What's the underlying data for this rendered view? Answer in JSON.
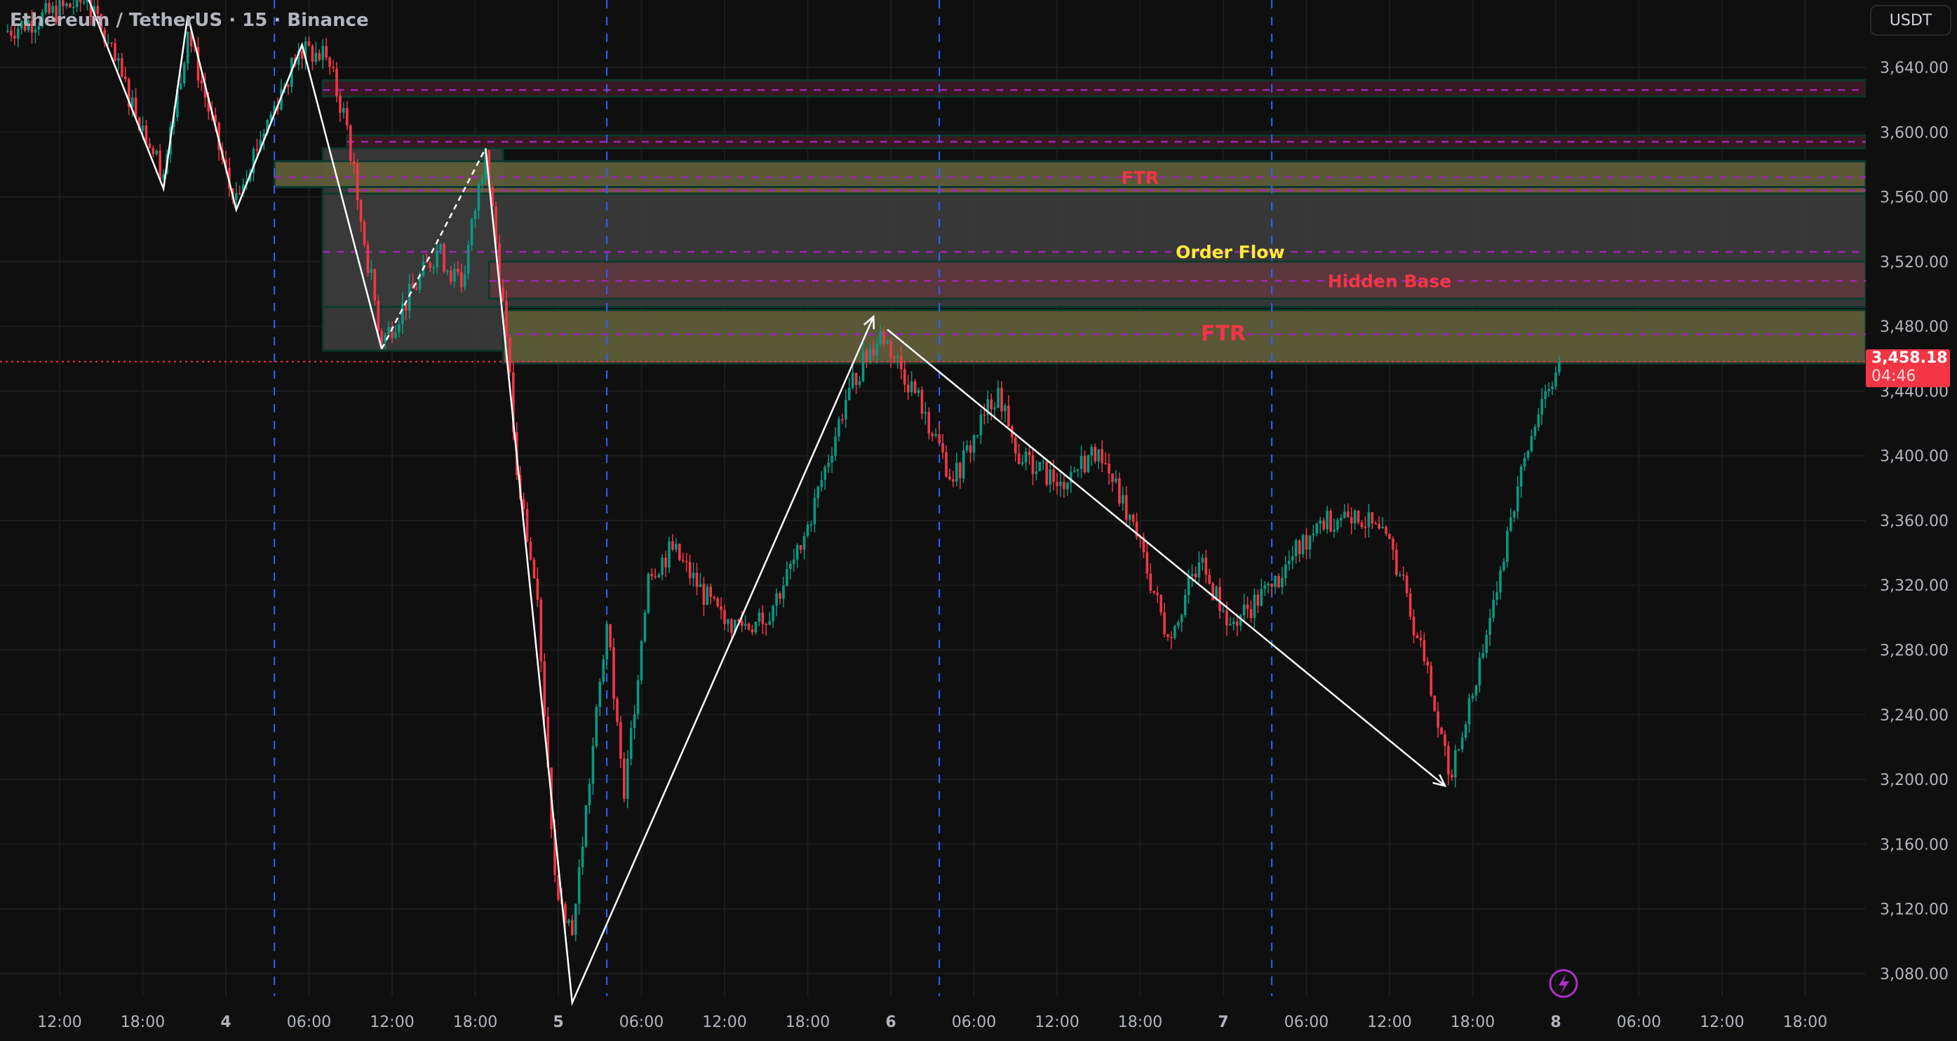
{
  "header": {
    "title": "Ethereum / TetherUS · 15 · Binance",
    "currency_button": "USDT"
  },
  "price_label": {
    "price": "3,458.18",
    "countdown": "04:46",
    "color": "#f23645"
  },
  "icons": {
    "alert": "lightning-icon"
  },
  "colors": {
    "background": "#0f0f0f",
    "grid": "#1c1c1c",
    "up": "#089981",
    "down": "#f23645",
    "session_line": "#2962ff",
    "midline": "#9c27b0"
  },
  "chart_data": {
    "type": "candlestick",
    "interval": "15",
    "ylim": [
      3060,
      3690
    ],
    "price_ticks": [
      "3,640.00",
      "3,600.00",
      "3,560.00",
      "3,520.00",
      "3,480.00",
      "3,440.00",
      "3,400.00",
      "3,360.00",
      "3,320.00",
      "3,280.00",
      "3,240.00",
      "3,200.00",
      "3,160.00",
      "3,120.00",
      "3,080.00"
    ],
    "time_ticks": [
      "12:00",
      "18:00",
      "4",
      "06:00",
      "12:00",
      "18:00",
      "5",
      "06:00",
      "12:00",
      "18:00",
      "6",
      "06:00",
      "12:00",
      "18:00",
      "7",
      "06:00",
      "12:00",
      "18:00",
      "8",
      "06:00",
      "12:00",
      "18:00"
    ],
    "price_path": [
      {
        "t": "3 08:00",
        "p": 3662
      },
      {
        "t": "3 14:00",
        "p": 3682
      },
      {
        "t": "3 19:30",
        "p": 3574
      },
      {
        "t": "3 21:15",
        "p": 3662
      },
      {
        "t": "4 00:30",
        "p": 3558
      },
      {
        "t": "4 05:15",
        "p": 3650
      },
      {
        "t": "4 07:15",
        "p": 3646
      },
      {
        "t": "4 08:45",
        "p": 3604
      },
      {
        "t": "4 09:30",
        "p": 3558
      },
      {
        "t": "4 11:15",
        "p": 3470
      },
      {
        "t": "4 15:15",
        "p": 3527
      },
      {
        "t": "4 17:00",
        "p": 3504
      },
      {
        "t": "4 18:45",
        "p": 3589
      },
      {
        "t": "4 20:15",
        "p": 3473
      },
      {
        "t": "4 21:00",
        "p": 3388
      },
      {
        "t": "4 22:30",
        "p": 3311
      },
      {
        "t": "4 23:45",
        "p": 3141
      },
      {
        "t": "5 01:00",
        "p": 3104
      },
      {
        "t": "5 03:30",
        "p": 3296
      },
      {
        "t": "5 04:45",
        "p": 3188
      },
      {
        "t": "5 06:30",
        "p": 3327
      },
      {
        "t": "5 08:15",
        "p": 3342
      },
      {
        "t": "5 12:00",
        "p": 3296
      },
      {
        "t": "5 14:45",
        "p": 3296
      },
      {
        "t": "5 17:30",
        "p": 3342
      },
      {
        "t": "5 21:00",
        "p": 3442
      },
      {
        "t": "5 23:15",
        "p": 3477
      },
      {
        "t": "6 02:30",
        "p": 3427
      },
      {
        "t": "6 04:30",
        "p": 3384
      },
      {
        "t": "6 07:45",
        "p": 3442
      },
      {
        "t": "6 09:30",
        "p": 3396
      },
      {
        "t": "6 12:15",
        "p": 3384
      },
      {
        "t": "6 15:00",
        "p": 3404
      },
      {
        "t": "6 17:45",
        "p": 3350
      },
      {
        "t": "6 20:00",
        "p": 3288
      },
      {
        "t": "6 22:15",
        "p": 3334
      },
      {
        "t": "7 00:30",
        "p": 3296
      },
      {
        "t": "7 03:30",
        "p": 3319
      },
      {
        "t": "7 06:45",
        "p": 3358
      },
      {
        "t": "7 09:30",
        "p": 3366
      },
      {
        "t": "7 12:15",
        "p": 3342
      },
      {
        "t": "7 14:30",
        "p": 3273
      },
      {
        "t": "7 16:15",
        "p": 3203
      },
      {
        "t": "7 17:30",
        "p": 3234
      },
      {
        "t": "7 19:30",
        "p": 3311
      },
      {
        "t": "7 21:15",
        "p": 3381
      },
      {
        "t": "7 23:00",
        "p": 3435
      },
      {
        "t": "8 00:15",
        "p": 3458.18
      }
    ],
    "session_lines": [
      "4 03:30",
      "5 03:30",
      "6 03:30",
      "7 03:30"
    ],
    "zones": [
      {
        "kind": "supply",
        "from": "4 07:00",
        "top": 3632,
        "bottom": 3622,
        "mid": 3626,
        "fill": "#3b1a22"
      },
      {
        "kind": "supply",
        "from": "4 08:45",
        "top": 3598,
        "bottom": 3590,
        "mid": 3594,
        "fill": "#3b1a22"
      },
      {
        "kind": "box",
        "from": "4 07:00",
        "to": "4 20:00",
        "top": 3590,
        "bottom": 3465,
        "fill": "#3a3a3a"
      },
      {
        "kind": "box",
        "from": "4 07:00",
        "top": 3562,
        "bottom": 3492,
        "fill": "#3a3a3a"
      },
      {
        "kind": "ftr",
        "from": "4 03:30",
        "top": 3582,
        "bottom": 3566,
        "mid": 3572,
        "fill": "#5f5c3a"
      },
      {
        "kind": "thin",
        "from": "4 08:45",
        "top": 3566,
        "bottom": 3562,
        "mid": 3564,
        "fill": "#7a5a3a"
      },
      {
        "kind": "hidden",
        "from": "4 19:00",
        "top": 3520,
        "bottom": 3497,
        "mid": 3508,
        "fill": "#5c383c"
      },
      {
        "kind": "ftr",
        "from": "4 20:00",
        "top": 3490,
        "bottom": 3457,
        "mid": 3475,
        "fill": "#5f5c3a"
      }
    ],
    "order_flow_level": 3526,
    "labels": [
      {
        "text": "FTR",
        "t": "6 18:00",
        "p": 3572,
        "color": "#f23645",
        "size": "small"
      },
      {
        "text": "Order Flow",
        "t": "7 00:30",
        "p": 3526,
        "color": "#ffeb3b",
        "size": "small"
      },
      {
        "text": "Hidden Base",
        "t": "7 12:00",
        "p": 3508,
        "color": "#f23645",
        "size": "small"
      },
      {
        "text": "FTR",
        "t": "7 00:00",
        "p": 3475,
        "color": "#f23645",
        "size": "large"
      }
    ],
    "drawings": [
      {
        "points": [
          {
            "t": "3 14:00",
            "p": 3684
          },
          {
            "t": "3 19:30",
            "p": 3565
          },
          {
            "t": "3 21:15",
            "p": 3672
          },
          {
            "t": "4 00:45",
            "p": 3552
          },
          {
            "t": "4 05:30",
            "p": 3654
          },
          {
            "t": "4 11:15",
            "p": 3466
          }
        ],
        "dashed": false
      },
      {
        "points": [
          {
            "t": "4 11:15",
            "p": 3466
          },
          {
            "t": "4 18:45",
            "p": 3590
          }
        ],
        "dashed": true
      },
      {
        "points": [
          {
            "t": "4 18:45",
            "p": 3590
          },
          {
            "t": "5 01:00",
            "p": 3062
          },
          {
            "t": "5 22:45",
            "p": 3486
          }
        ],
        "dashed": false,
        "arrow": true
      },
      {
        "points": [
          {
            "t": "5 23:45",
            "p": 3478
          },
          {
            "t": "7 16:00",
            "p": 3196
          }
        ],
        "dashed": false,
        "arrow": true
      }
    ],
    "current_price": 3458.18
  }
}
